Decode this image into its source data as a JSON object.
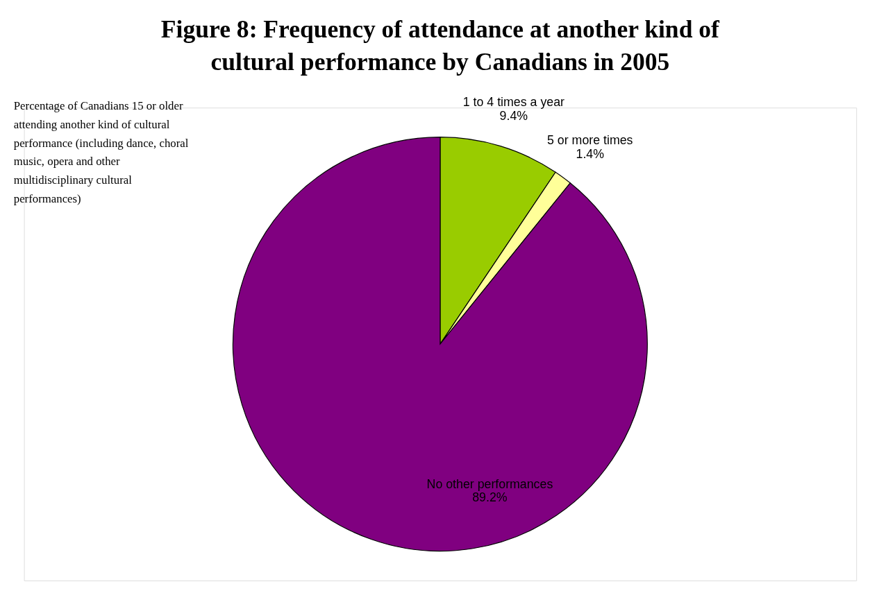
{
  "chart_data": {
    "type": "pie",
    "title": "Figure 8: Frequency of attendance at another kind of cultural performance by Canadians in 2005",
    "categories": [
      "1 to 4 times a year",
      "5 or more times",
      "No other performances"
    ],
    "values": [
      9.4,
      1.4,
      89.2
    ],
    "colors": [
      "#99cc00",
      "#ffff99",
      "#800080"
    ],
    "value_labels": [
      "9.4%",
      "1.4%",
      "89.2%"
    ],
    "annotations": [
      "Percentage of Canadians 15 or older attending another kind of cultural performance (including dance, choral music, opera and other multidisciplinary cultural performances)"
    ]
  }
}
